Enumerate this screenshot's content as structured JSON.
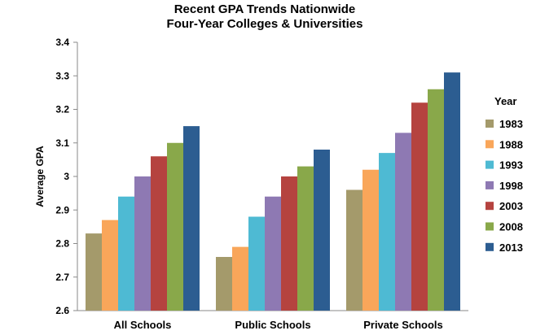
{
  "chart_data": {
    "type": "bar",
    "title": "Recent GPA Trends Nationwide",
    "subtitle": "Four-Year Colleges & Universities",
    "xlabel": "",
    "ylabel": "Average GPA",
    "ylim": [
      2.6,
      3.4
    ],
    "yticks": [
      "2.6",
      "2.7",
      "2.8",
      "2.9",
      "3",
      "3.1",
      "3.2",
      "3.3",
      "3.4"
    ],
    "grid": false,
    "legend_title": "Year",
    "legend_position": "right",
    "categories": [
      "All Schools",
      "Public Schools",
      "Private Schools"
    ],
    "series": [
      {
        "name": "1983",
        "color": "#a49a6b",
        "values": [
          2.83,
          2.76,
          2.96
        ]
      },
      {
        "name": "1988",
        "color": "#f9a65a",
        "values": [
          2.87,
          2.79,
          3.02
        ]
      },
      {
        "name": "1993",
        "color": "#4ebad3",
        "values": [
          2.94,
          2.88,
          3.07
        ]
      },
      {
        "name": "1998",
        "color": "#8e79b3",
        "values": [
          3.0,
          2.94,
          3.13
        ]
      },
      {
        "name": "2003",
        "color": "#b5433f",
        "values": [
          3.06,
          3.0,
          3.22
        ]
      },
      {
        "name": "2008",
        "color": "#89a84a",
        "values": [
          3.1,
          3.03,
          3.26
        ]
      },
      {
        "name": "2013",
        "color": "#2c5d91",
        "values": [
          3.15,
          3.08,
          3.31
        ]
      }
    ]
  }
}
